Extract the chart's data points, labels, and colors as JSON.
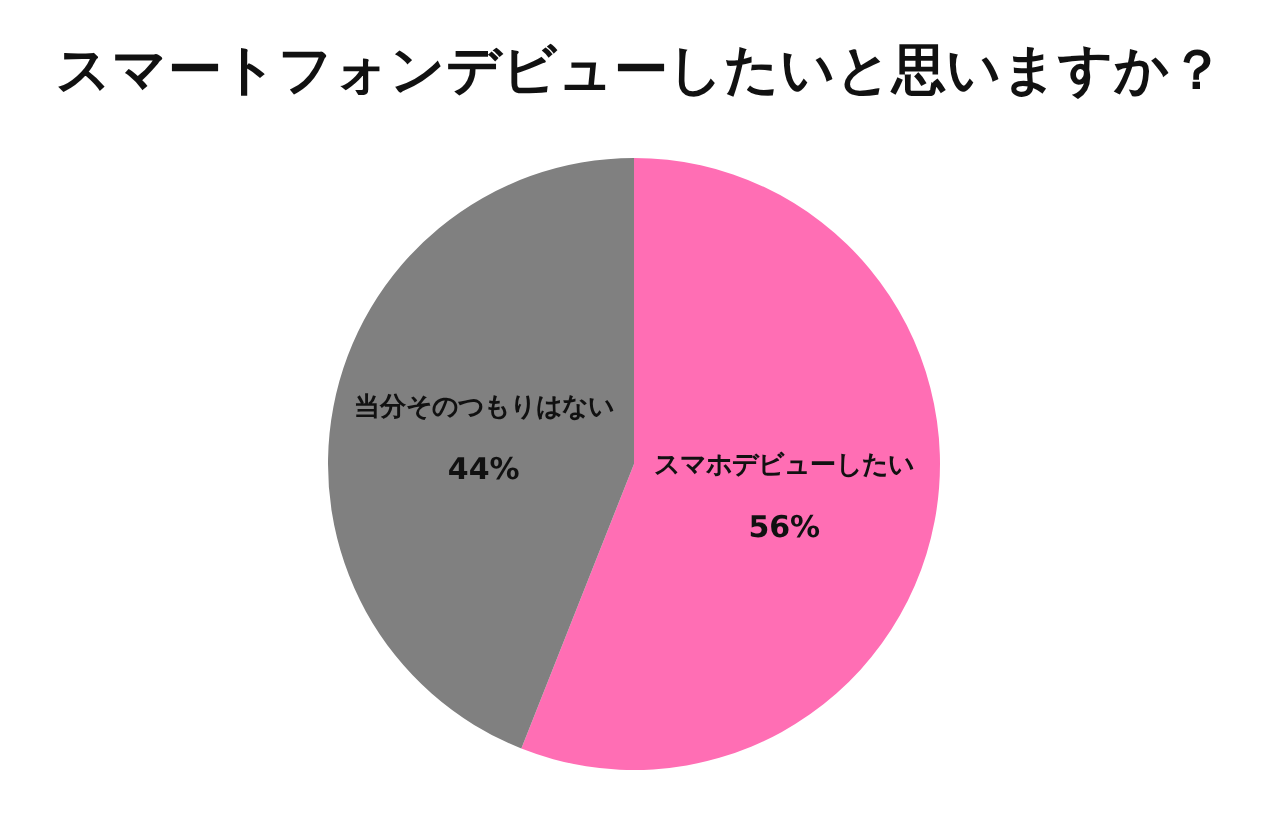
{
  "chart_data": {
    "type": "pie",
    "title": "スマートフォンデビューしたいと思いますか？",
    "categories": [
      "スマホデビューしたい",
      "当分そのつもりはない"
    ],
    "values": [
      56,
      44
    ],
    "colors": [
      "#ff6eb4",
      "#808080"
    ],
    "value_labels": [
      "56%",
      "44%"
    ]
  }
}
